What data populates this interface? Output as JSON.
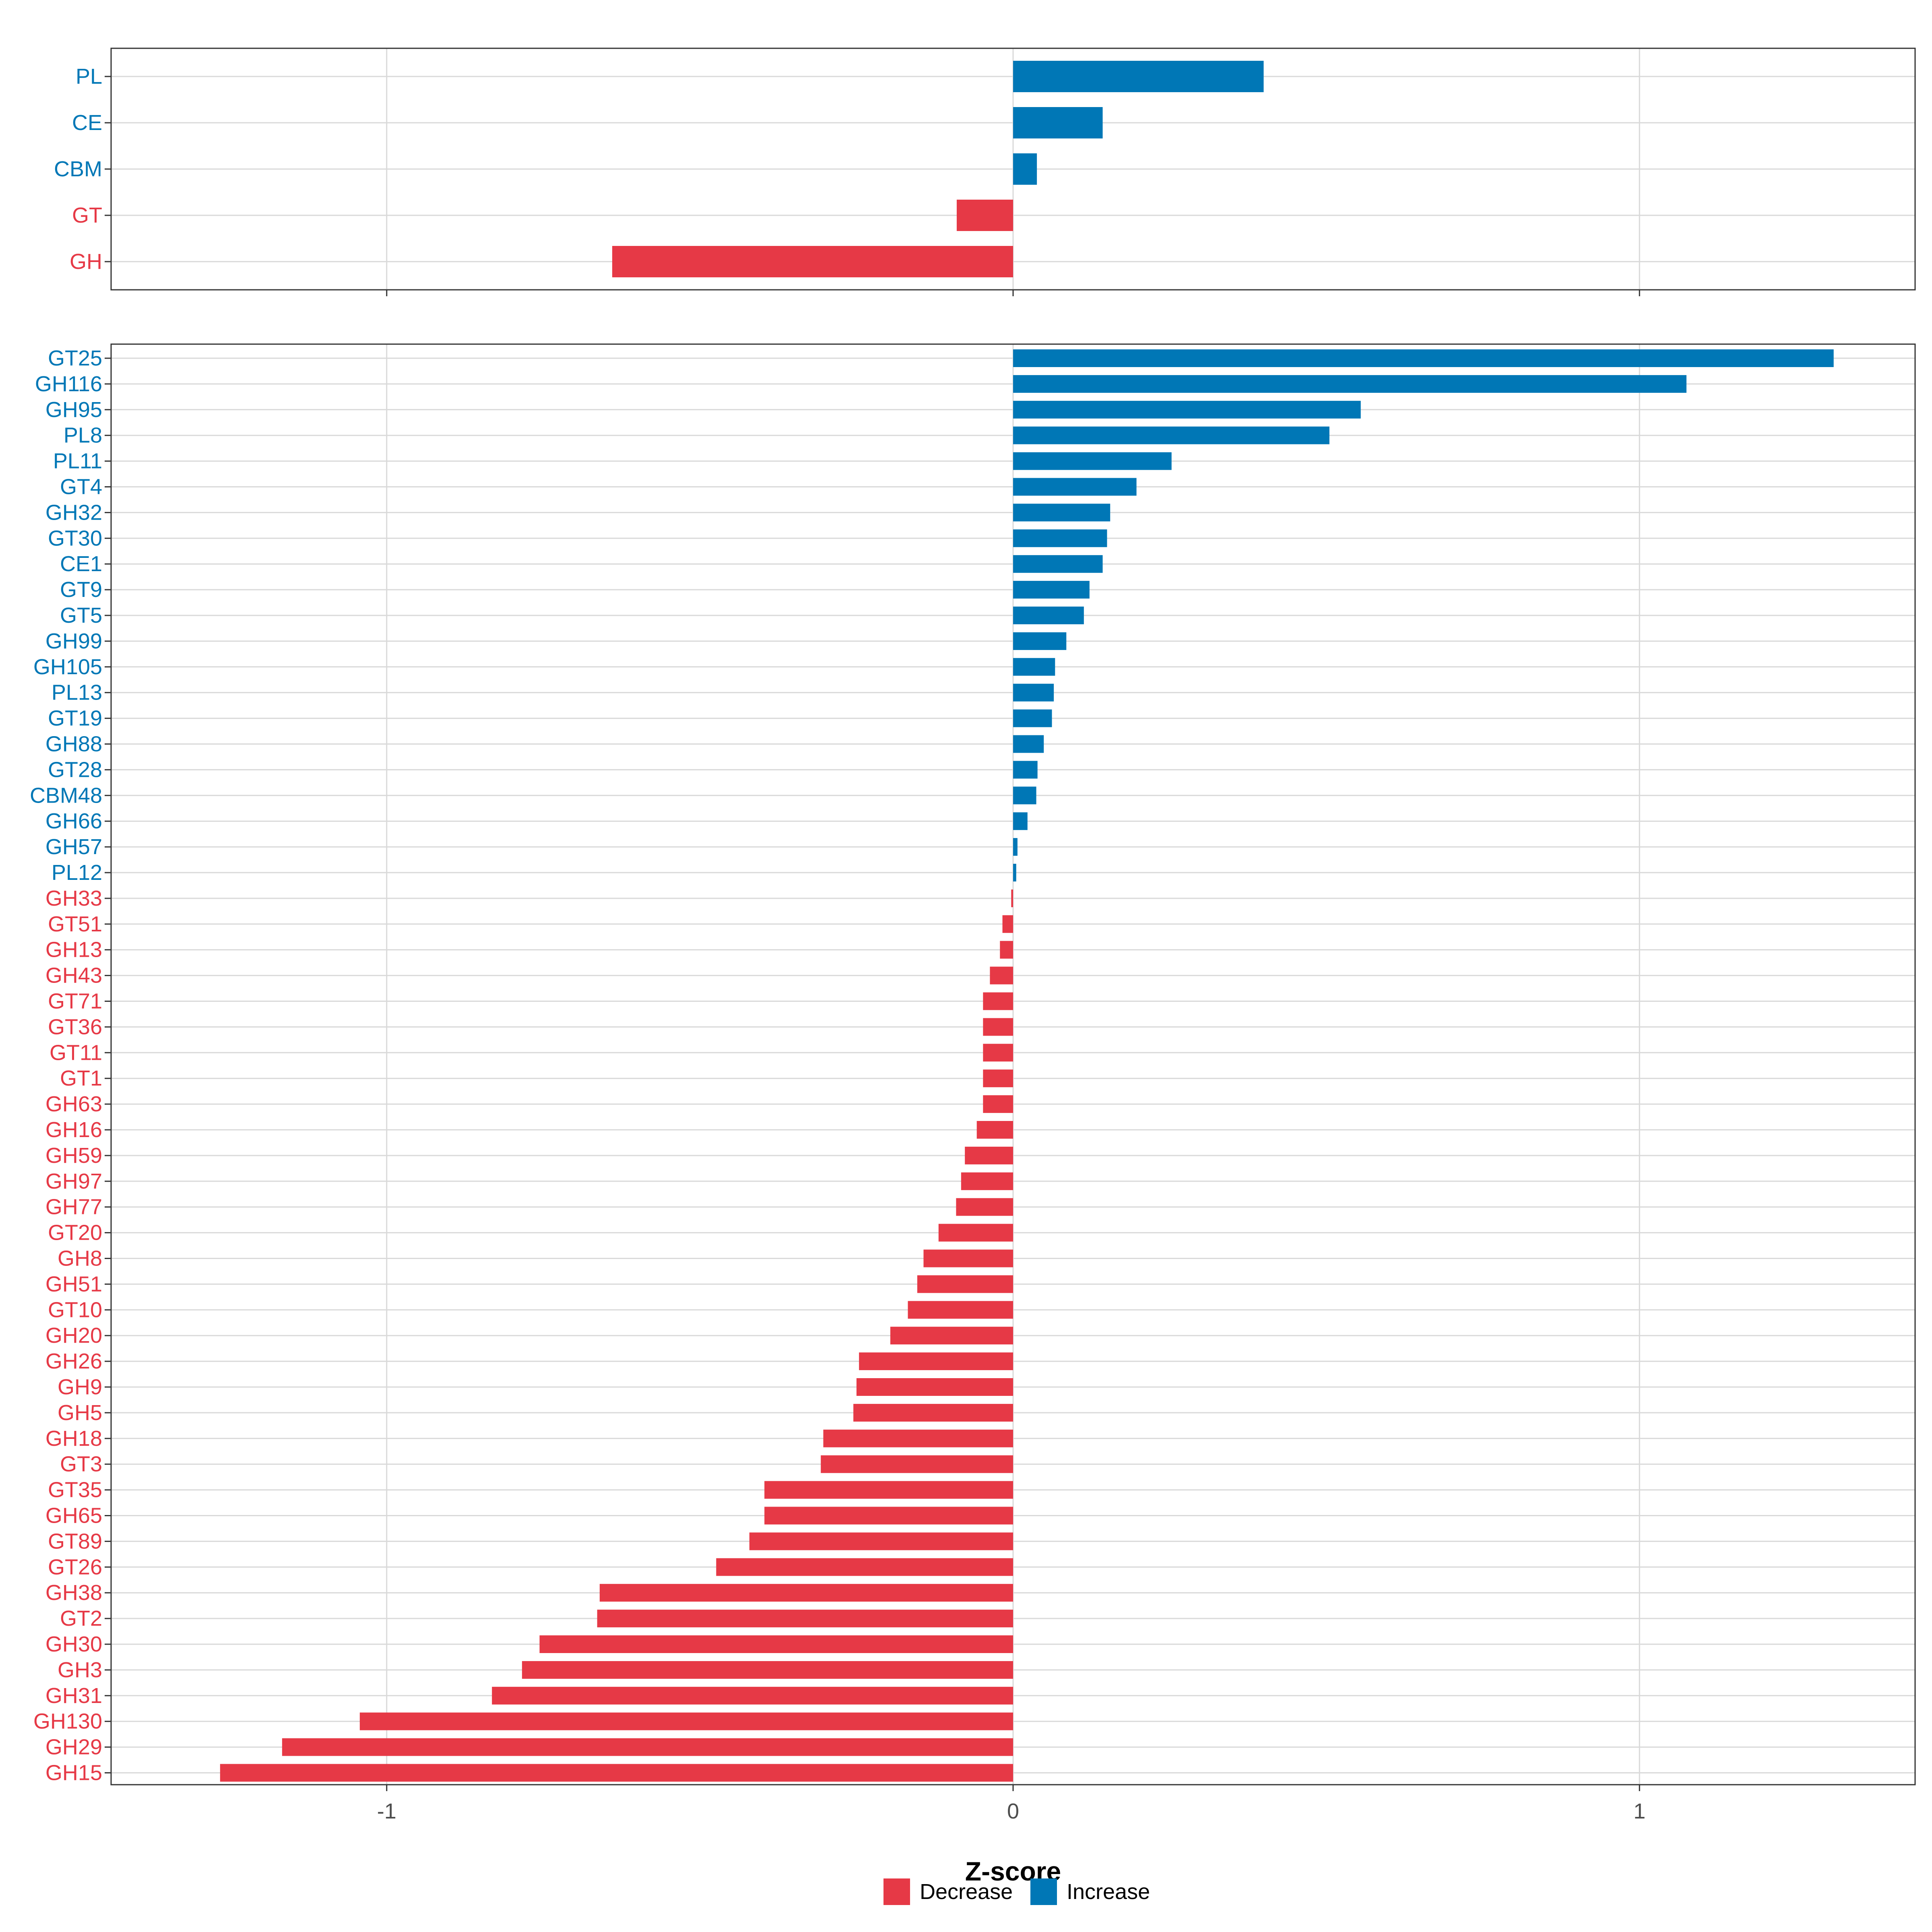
{
  "colors": {
    "decrease": "#E63946",
    "increase": "#0077B6"
  },
  "chart_data": {
    "type": "bar",
    "orientation": "horizontal",
    "xlabel": "Z-score",
    "xlim": [
      -1.44,
      1.44
    ],
    "xticks": [
      -1,
      0,
      1
    ],
    "xtick_labels": [
      "-1",
      "0",
      "1"
    ],
    "grid": true,
    "legend": {
      "position": "bottom",
      "items": [
        {
          "key": "decrease",
          "label": "Decrease"
        },
        {
          "key": "increase",
          "label": "Increase"
        }
      ]
    },
    "panels": [
      {
        "name": "family-summary",
        "categories": [
          "PL",
          "CE",
          "CBM",
          "GT",
          "GH"
        ],
        "values": [
          0.4,
          0.143,
          0.038,
          -0.09,
          -0.64
        ]
      },
      {
        "name": "subfamily-detail",
        "categories": [
          "GT25",
          "GH116",
          "GH95",
          "PL8",
          "PL11",
          "GT4",
          "GH32",
          "GT30",
          "CE1",
          "GT9",
          "GT5",
          "GH99",
          "GH105",
          "PL13",
          "GT19",
          "GH88",
          "GT28",
          "CBM48",
          "GH66",
          "GH57",
          "PL12",
          "GH33",
          "GT51",
          "GH13",
          "GH43",
          "GT71",
          "GT36",
          "GT11",
          "GT1",
          "GH63",
          "GH16",
          "GH59",
          "GH97",
          "GH77",
          "GT20",
          "GH8",
          "GH51",
          "GT10",
          "GH20",
          "GH26",
          "GH9",
          "GH5",
          "GH18",
          "GT3",
          "GT35",
          "GH65",
          "GT89",
          "GT26",
          "GH38",
          "GT2",
          "GH30",
          "GH3",
          "GH31",
          "GH130",
          "GH29",
          "GH15"
        ],
        "values": [
          1.31,
          1.075,
          0.555,
          0.505,
          0.253,
          0.197,
          0.155,
          0.15,
          0.143,
          0.122,
          0.113,
          0.085,
          0.067,
          0.065,
          0.062,
          0.049,
          0.039,
          0.037,
          0.023,
          0.007,
          0.005,
          -0.003,
          -0.017,
          -0.021,
          -0.037,
          -0.048,
          -0.048,
          -0.048,
          -0.048,
          -0.048,
          -0.058,
          -0.077,
          -0.083,
          -0.091,
          -0.119,
          -0.143,
          -0.153,
          -0.168,
          -0.196,
          -0.246,
          -0.25,
          -0.255,
          -0.303,
          -0.307,
          -0.397,
          -0.397,
          -0.421,
          -0.474,
          -0.66,
          -0.664,
          -0.756,
          -0.784,
          -0.832,
          -1.043,
          -1.167,
          -1.266
        ]
      }
    ]
  }
}
